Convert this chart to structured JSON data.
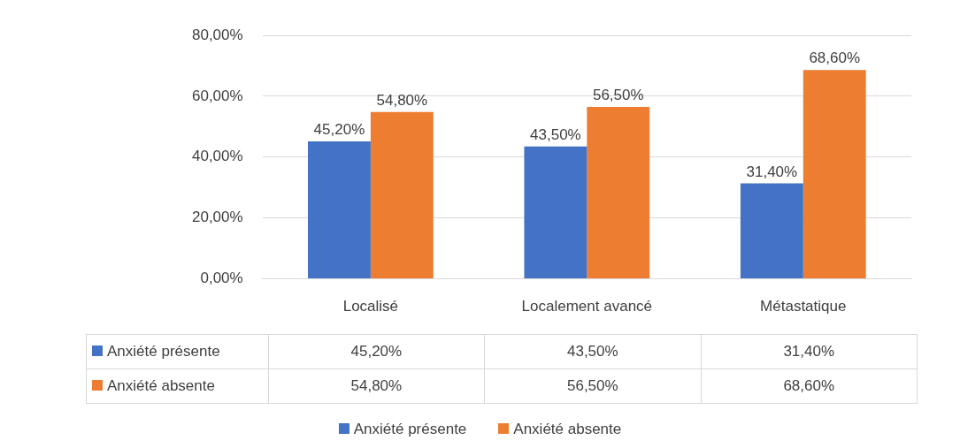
{
  "chart_data": {
    "type": "bar",
    "categories": [
      "Localisé",
      "Localement avancé",
      "Métastatique"
    ],
    "series": [
      {
        "name": "Anxiété présente",
        "color": "#4472c4",
        "values": [
          45.2,
          43.5,
          31.4
        ],
        "value_labels": [
          "45,20%",
          "43,50%",
          "31,40%"
        ]
      },
      {
        "name": "Anxiété absente",
        "color": "#ed7d31",
        "values": [
          54.8,
          56.5,
          68.6
        ],
        "value_labels": [
          "54,80%",
          "56,50%",
          "68,60%"
        ]
      }
    ],
    "ylim": [
      0,
      80
    ],
    "yticks": [
      {
        "value": 0,
        "label": "0,00%"
      },
      {
        "value": 20,
        "label": "20,00%"
      },
      {
        "value": 40,
        "label": "40,00%"
      },
      {
        "value": 60,
        "label": "60,00%"
      },
      {
        "value": 80,
        "label": "80,00%"
      }
    ],
    "grid": "y",
    "legend": "bottom"
  }
}
